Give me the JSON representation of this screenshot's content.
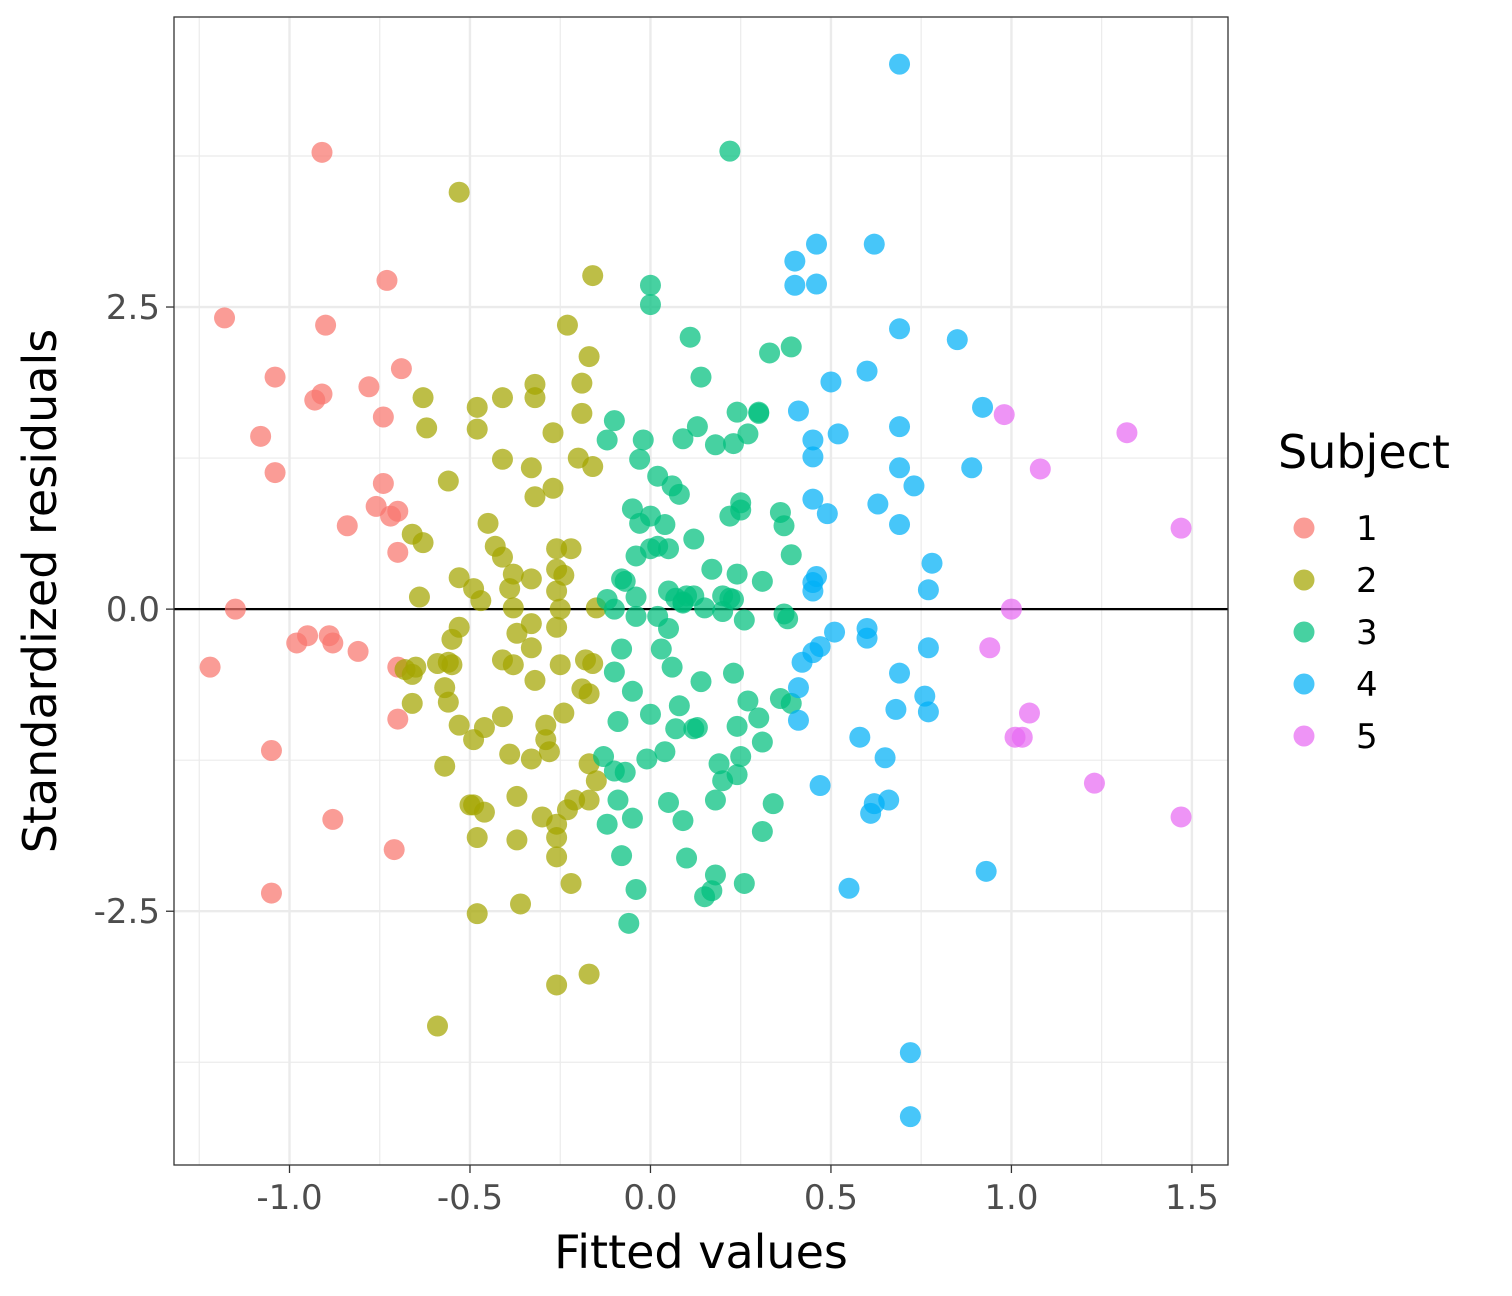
{
  "chart_data": {
    "type": "scatter",
    "xlabel": "Fitted values",
    "ylabel": "Standardized residuals",
    "xlim": [
      -1.32,
      1.6
    ],
    "ylim": [
      -4.6,
      4.9
    ],
    "x_ticks": [
      -1.0,
      -0.5,
      0.0,
      0.5,
      1.0,
      1.5
    ],
    "x_tick_labels": [
      "-1.0",
      "-0.5",
      "0.0",
      "0.5",
      "1.0",
      "1.5"
    ],
    "y_ticks": [
      -2.5,
      0.0,
      2.5
    ],
    "y_tick_labels": [
      "-2.5",
      "0.0",
      "2.5"
    ],
    "reference_line_y": 0,
    "grid": true,
    "legend": {
      "title": "Subject",
      "placement": "right"
    },
    "series": [
      {
        "name": "1",
        "color": "#F8766D",
        "points": [
          [
            -0.91,
            3.78
          ],
          [
            -1.18,
            2.41
          ],
          [
            -0.9,
            2.35
          ],
          [
            -0.73,
            2.72
          ],
          [
            -1.04,
            1.92
          ],
          [
            -0.93,
            1.73
          ],
          [
            -0.91,
            1.78
          ],
          [
            -0.78,
            1.84
          ],
          [
            -0.74,
            1.59
          ],
          [
            -0.69,
            1.99
          ],
          [
            -1.08,
            1.43
          ],
          [
            -1.04,
            1.13
          ],
          [
            -0.74,
            1.04
          ],
          [
            -0.76,
            0.85
          ],
          [
            -0.72,
            0.77
          ],
          [
            -0.7,
            0.81
          ],
          [
            -0.84,
            0.69
          ],
          [
            -0.7,
            0.47
          ],
          [
            -1.15,
            0.0
          ],
          [
            -0.98,
            -0.28
          ],
          [
            -0.95,
            -0.22
          ],
          [
            -0.89,
            -0.22
          ],
          [
            -0.88,
            -0.28
          ],
          [
            -0.81,
            -0.35
          ],
          [
            -1.22,
            -0.48
          ],
          [
            -0.7,
            -0.48
          ],
          [
            -0.7,
            -0.91
          ],
          [
            -1.05,
            -1.17
          ],
          [
            -0.88,
            -1.74
          ],
          [
            -0.71,
            -1.99
          ],
          [
            -1.05,
            -2.35
          ]
        ]
      },
      {
        "name": "2",
        "color": "#A3A500",
        "points": [
          [
            -0.53,
            3.45
          ],
          [
            -0.16,
            2.76
          ],
          [
            -0.23,
            2.35
          ],
          [
            -0.17,
            2.09
          ],
          [
            -0.32,
            1.86
          ],
          [
            -0.32,
            1.75
          ],
          [
            -0.19,
            1.87
          ],
          [
            -0.63,
            1.75
          ],
          [
            -0.48,
            1.67
          ],
          [
            -0.41,
            1.75
          ],
          [
            -0.19,
            1.62
          ],
          [
            -0.62,
            1.5
          ],
          [
            -0.48,
            1.49
          ],
          [
            -0.27,
            1.46
          ],
          [
            -0.2,
            1.25
          ],
          [
            -0.16,
            1.18
          ],
          [
            -0.41,
            1.24
          ],
          [
            -0.33,
            1.17
          ],
          [
            -0.27,
            1.0
          ],
          [
            -0.32,
            0.93
          ],
          [
            -0.56,
            1.06
          ],
          [
            -0.45,
            0.71
          ],
          [
            -0.66,
            0.62
          ],
          [
            -0.63,
            0.55
          ],
          [
            -0.43,
            0.52
          ],
          [
            -0.26,
            0.5
          ],
          [
            -0.22,
            0.5
          ],
          [
            -0.41,
            0.43
          ],
          [
            -0.26,
            0.33
          ],
          [
            -0.38,
            0.29
          ],
          [
            -0.24,
            0.28
          ],
          [
            -0.33,
            0.25
          ],
          [
            -0.53,
            0.26
          ],
          [
            -0.49,
            0.17
          ],
          [
            -0.39,
            0.17
          ],
          [
            -0.26,
            0.15
          ],
          [
            -0.64,
            0.1
          ],
          [
            -0.47,
            0.07
          ],
          [
            -0.38,
            0.01
          ],
          [
            -0.25,
            0.0
          ],
          [
            -0.15,
            0.01
          ],
          [
            -0.33,
            -0.12
          ],
          [
            -0.26,
            -0.15
          ],
          [
            -0.53,
            -0.15
          ],
          [
            -0.37,
            -0.2
          ],
          [
            -0.55,
            -0.25
          ],
          [
            -0.33,
            -0.32
          ],
          [
            -0.41,
            -0.42
          ],
          [
            -0.65,
            -0.48
          ],
          [
            -0.59,
            -0.45
          ],
          [
            -0.56,
            -0.44
          ],
          [
            -0.55,
            -0.46
          ],
          [
            -0.38,
            -0.46
          ],
          [
            -0.25,
            -0.46
          ],
          [
            -0.18,
            -0.42
          ],
          [
            -0.16,
            -0.45
          ],
          [
            -0.68,
            -0.5
          ],
          [
            -0.66,
            -0.54
          ],
          [
            -0.32,
            -0.59
          ],
          [
            -0.19,
            -0.66
          ],
          [
            -0.17,
            -0.7
          ],
          [
            -0.57,
            -0.65
          ],
          [
            -0.56,
            -0.77
          ],
          [
            -0.66,
            -0.78
          ],
          [
            -0.24,
            -0.86
          ],
          [
            -0.41,
            -0.89
          ],
          [
            -0.53,
            -0.96
          ],
          [
            -0.46,
            -0.98
          ],
          [
            -0.29,
            -0.96
          ],
          [
            -0.49,
            -1.08
          ],
          [
            -0.29,
            -1.08
          ],
          [
            -0.39,
            -1.2
          ],
          [
            -0.33,
            -1.24
          ],
          [
            -0.28,
            -1.18
          ],
          [
            -0.17,
            -1.28
          ],
          [
            -0.57,
            -1.3
          ],
          [
            -0.15,
            -1.42
          ],
          [
            -0.37,
            -1.55
          ],
          [
            -0.21,
            -1.58
          ],
          [
            -0.17,
            -1.58
          ],
          [
            -0.23,
            -1.66
          ],
          [
            -0.5,
            -1.62
          ],
          [
            -0.49,
            -1.62
          ],
          [
            -0.46,
            -1.68
          ],
          [
            -0.3,
            -1.72
          ],
          [
            -0.26,
            -1.78
          ],
          [
            -0.48,
            -1.89
          ],
          [
            -0.37,
            -1.91
          ],
          [
            -0.26,
            -1.89
          ],
          [
            -0.26,
            -2.05
          ],
          [
            -0.22,
            -2.27
          ],
          [
            -0.48,
            -2.52
          ],
          [
            -0.36,
            -2.44
          ],
          [
            -0.17,
            -3.02
          ],
          [
            -0.26,
            -3.11
          ],
          [
            -0.59,
            -3.45
          ]
        ]
      },
      {
        "name": "3",
        "color": "#00BF7D",
        "points": [
          [
            0.22,
            3.79
          ],
          [
            0.0,
            2.68
          ],
          [
            0.0,
            2.52
          ],
          [
            0.11,
            2.25
          ],
          [
            0.33,
            2.12
          ],
          [
            0.39,
            2.17
          ],
          [
            0.14,
            1.92
          ],
          [
            0.24,
            1.63
          ],
          [
            0.3,
            1.63
          ],
          [
            0.3,
            1.62
          ],
          [
            0.13,
            1.51
          ],
          [
            -0.1,
            1.56
          ],
          [
            0.27,
            1.45
          ],
          [
            0.23,
            1.37
          ],
          [
            0.18,
            1.36
          ],
          [
            -0.12,
            1.4
          ],
          [
            -0.02,
            1.4
          ],
          [
            0.09,
            1.41
          ],
          [
            -0.03,
            1.24
          ],
          [
            0.02,
            1.1
          ],
          [
            0.06,
            1.02
          ],
          [
            0.08,
            0.95
          ],
          [
            0.25,
            0.88
          ],
          [
            0.25,
            0.82
          ],
          [
            0.22,
            0.77
          ],
          [
            0.36,
            0.8
          ],
          [
            -0.05,
            0.83
          ],
          [
            -0.03,
            0.71
          ],
          [
            0.0,
            0.77
          ],
          [
            0.04,
            0.7
          ],
          [
            0.37,
            0.69
          ],
          [
            0.12,
            0.58
          ],
          [
            0.0,
            0.5
          ],
          [
            0.02,
            0.52
          ],
          [
            0.05,
            0.5
          ],
          [
            0.39,
            0.45
          ],
          [
            -0.04,
            0.44
          ],
          [
            0.17,
            0.33
          ],
          [
            0.24,
            0.29
          ],
          [
            -0.08,
            0.25
          ],
          [
            0.31,
            0.23
          ],
          [
            -0.07,
            0.23
          ],
          [
            0.05,
            0.15
          ],
          [
            0.2,
            0.11
          ],
          [
            0.22,
            0.09
          ],
          [
            0.23,
            0.08
          ],
          [
            0.1,
            0.11
          ],
          [
            0.12,
            0.11
          ],
          [
            -0.12,
            0.08
          ],
          [
            -0.04,
            0.1
          ],
          [
            0.07,
            0.09
          ],
          [
            0.09,
            0.05
          ],
          [
            0.09,
            0.06
          ],
          [
            0.15,
            0.01
          ],
          [
            0.2,
            -0.02
          ],
          [
            0.26,
            -0.09
          ],
          [
            0.37,
            -0.04
          ],
          [
            0.38,
            -0.08
          ],
          [
            -0.1,
            0.0
          ],
          [
            -0.04,
            -0.06
          ],
          [
            0.02,
            -0.06
          ],
          [
            0.05,
            -0.16
          ],
          [
            -0.08,
            -0.33
          ],
          [
            0.03,
            -0.33
          ],
          [
            0.23,
            -0.53
          ],
          [
            0.06,
            -0.48
          ],
          [
            -0.1,
            -0.52
          ],
          [
            0.14,
            -0.6
          ],
          [
            -0.05,
            -0.68
          ],
          [
            0.27,
            -0.76
          ],
          [
            0.08,
            -0.8
          ],
          [
            0.3,
            -0.9
          ],
          [
            0.39,
            -0.78
          ],
          [
            0.36,
            -0.74
          ],
          [
            -0.09,
            -0.93
          ],
          [
            0.0,
            -0.87
          ],
          [
            0.07,
            -0.99
          ],
          [
            0.12,
            -0.99
          ],
          [
            0.13,
            -0.98
          ],
          [
            0.24,
            -0.97
          ],
          [
            0.25,
            -1.22
          ],
          [
            0.31,
            -1.1
          ],
          [
            -0.13,
            -1.22
          ],
          [
            -0.01,
            -1.24
          ],
          [
            0.04,
            -1.18
          ],
          [
            0.19,
            -1.28
          ],
          [
            0.24,
            -1.37
          ],
          [
            -0.1,
            -1.34
          ],
          [
            -0.07,
            -1.35
          ],
          [
            0.2,
            -1.42
          ],
          [
            0.18,
            -1.58
          ],
          [
            0.34,
            -1.61
          ],
          [
            0.05,
            -1.6
          ],
          [
            -0.09,
            -1.58
          ],
          [
            -0.12,
            -1.78
          ],
          [
            -0.05,
            -1.73
          ],
          [
            0.09,
            -1.75
          ],
          [
            0.31,
            -1.84
          ],
          [
            -0.08,
            -2.04
          ],
          [
            0.1,
            -2.06
          ],
          [
            0.18,
            -2.2
          ],
          [
            0.17,
            -2.33
          ],
          [
            0.15,
            -2.38
          ],
          [
            0.26,
            -2.27
          ],
          [
            -0.04,
            -2.32
          ],
          [
            -0.06,
            -2.6
          ]
        ]
      },
      {
        "name": "4",
        "color": "#00B0F6",
        "points": [
          [
            0.69,
            4.51
          ],
          [
            0.46,
            3.02
          ],
          [
            0.62,
            3.02
          ],
          [
            0.4,
            2.88
          ],
          [
            0.4,
            2.68
          ],
          [
            0.46,
            2.69
          ],
          [
            0.69,
            2.32
          ],
          [
            0.85,
            2.23
          ],
          [
            0.6,
            1.97
          ],
          [
            0.5,
            1.88
          ],
          [
            0.92,
            1.67
          ],
          [
            0.41,
            1.64
          ],
          [
            0.45,
            1.4
          ],
          [
            0.52,
            1.45
          ],
          [
            0.69,
            1.51
          ],
          [
            0.45,
            1.26
          ],
          [
            0.69,
            1.17
          ],
          [
            0.89,
            1.17
          ],
          [
            0.73,
            1.02
          ],
          [
            0.45,
            0.91
          ],
          [
            0.63,
            0.87
          ],
          [
            0.49,
            0.79
          ],
          [
            0.69,
            0.7
          ],
          [
            0.78,
            0.38
          ],
          [
            0.46,
            0.27
          ],
          [
            0.45,
            0.22
          ],
          [
            0.45,
            0.15
          ],
          [
            0.77,
            0.16
          ],
          [
            0.6,
            -0.16
          ],
          [
            0.51,
            -0.19
          ],
          [
            0.6,
            -0.24
          ],
          [
            0.47,
            -0.31
          ],
          [
            0.45,
            -0.36
          ],
          [
            0.42,
            -0.44
          ],
          [
            0.77,
            -0.32
          ],
          [
            0.69,
            -0.53
          ],
          [
            0.41,
            -0.65
          ],
          [
            0.76,
            -0.72
          ],
          [
            0.68,
            -0.83
          ],
          [
            0.77,
            -0.85
          ],
          [
            0.41,
            -0.92
          ],
          [
            0.58,
            -1.06
          ],
          [
            0.65,
            -1.23
          ],
          [
            0.47,
            -1.46
          ],
          [
            0.66,
            -1.58
          ],
          [
            0.62,
            -1.61
          ],
          [
            0.61,
            -1.69
          ],
          [
            0.93,
            -2.17
          ],
          [
            0.55,
            -2.31
          ],
          [
            0.72,
            -3.67
          ],
          [
            0.72,
            -4.2
          ]
        ]
      },
      {
        "name": "5",
        "color": "#E76BF3",
        "points": [
          [
            0.98,
            1.61
          ],
          [
            1.32,
            1.46
          ],
          [
            1.08,
            1.16
          ],
          [
            1.47,
            0.67
          ],
          [
            1.0,
            0.0
          ],
          [
            0.94,
            -0.32
          ],
          [
            1.05,
            -0.86
          ],
          [
            1.01,
            -1.06
          ],
          [
            1.03,
            -1.06
          ],
          [
            1.23,
            -1.44
          ],
          [
            1.47,
            -1.72
          ]
        ]
      }
    ]
  }
}
